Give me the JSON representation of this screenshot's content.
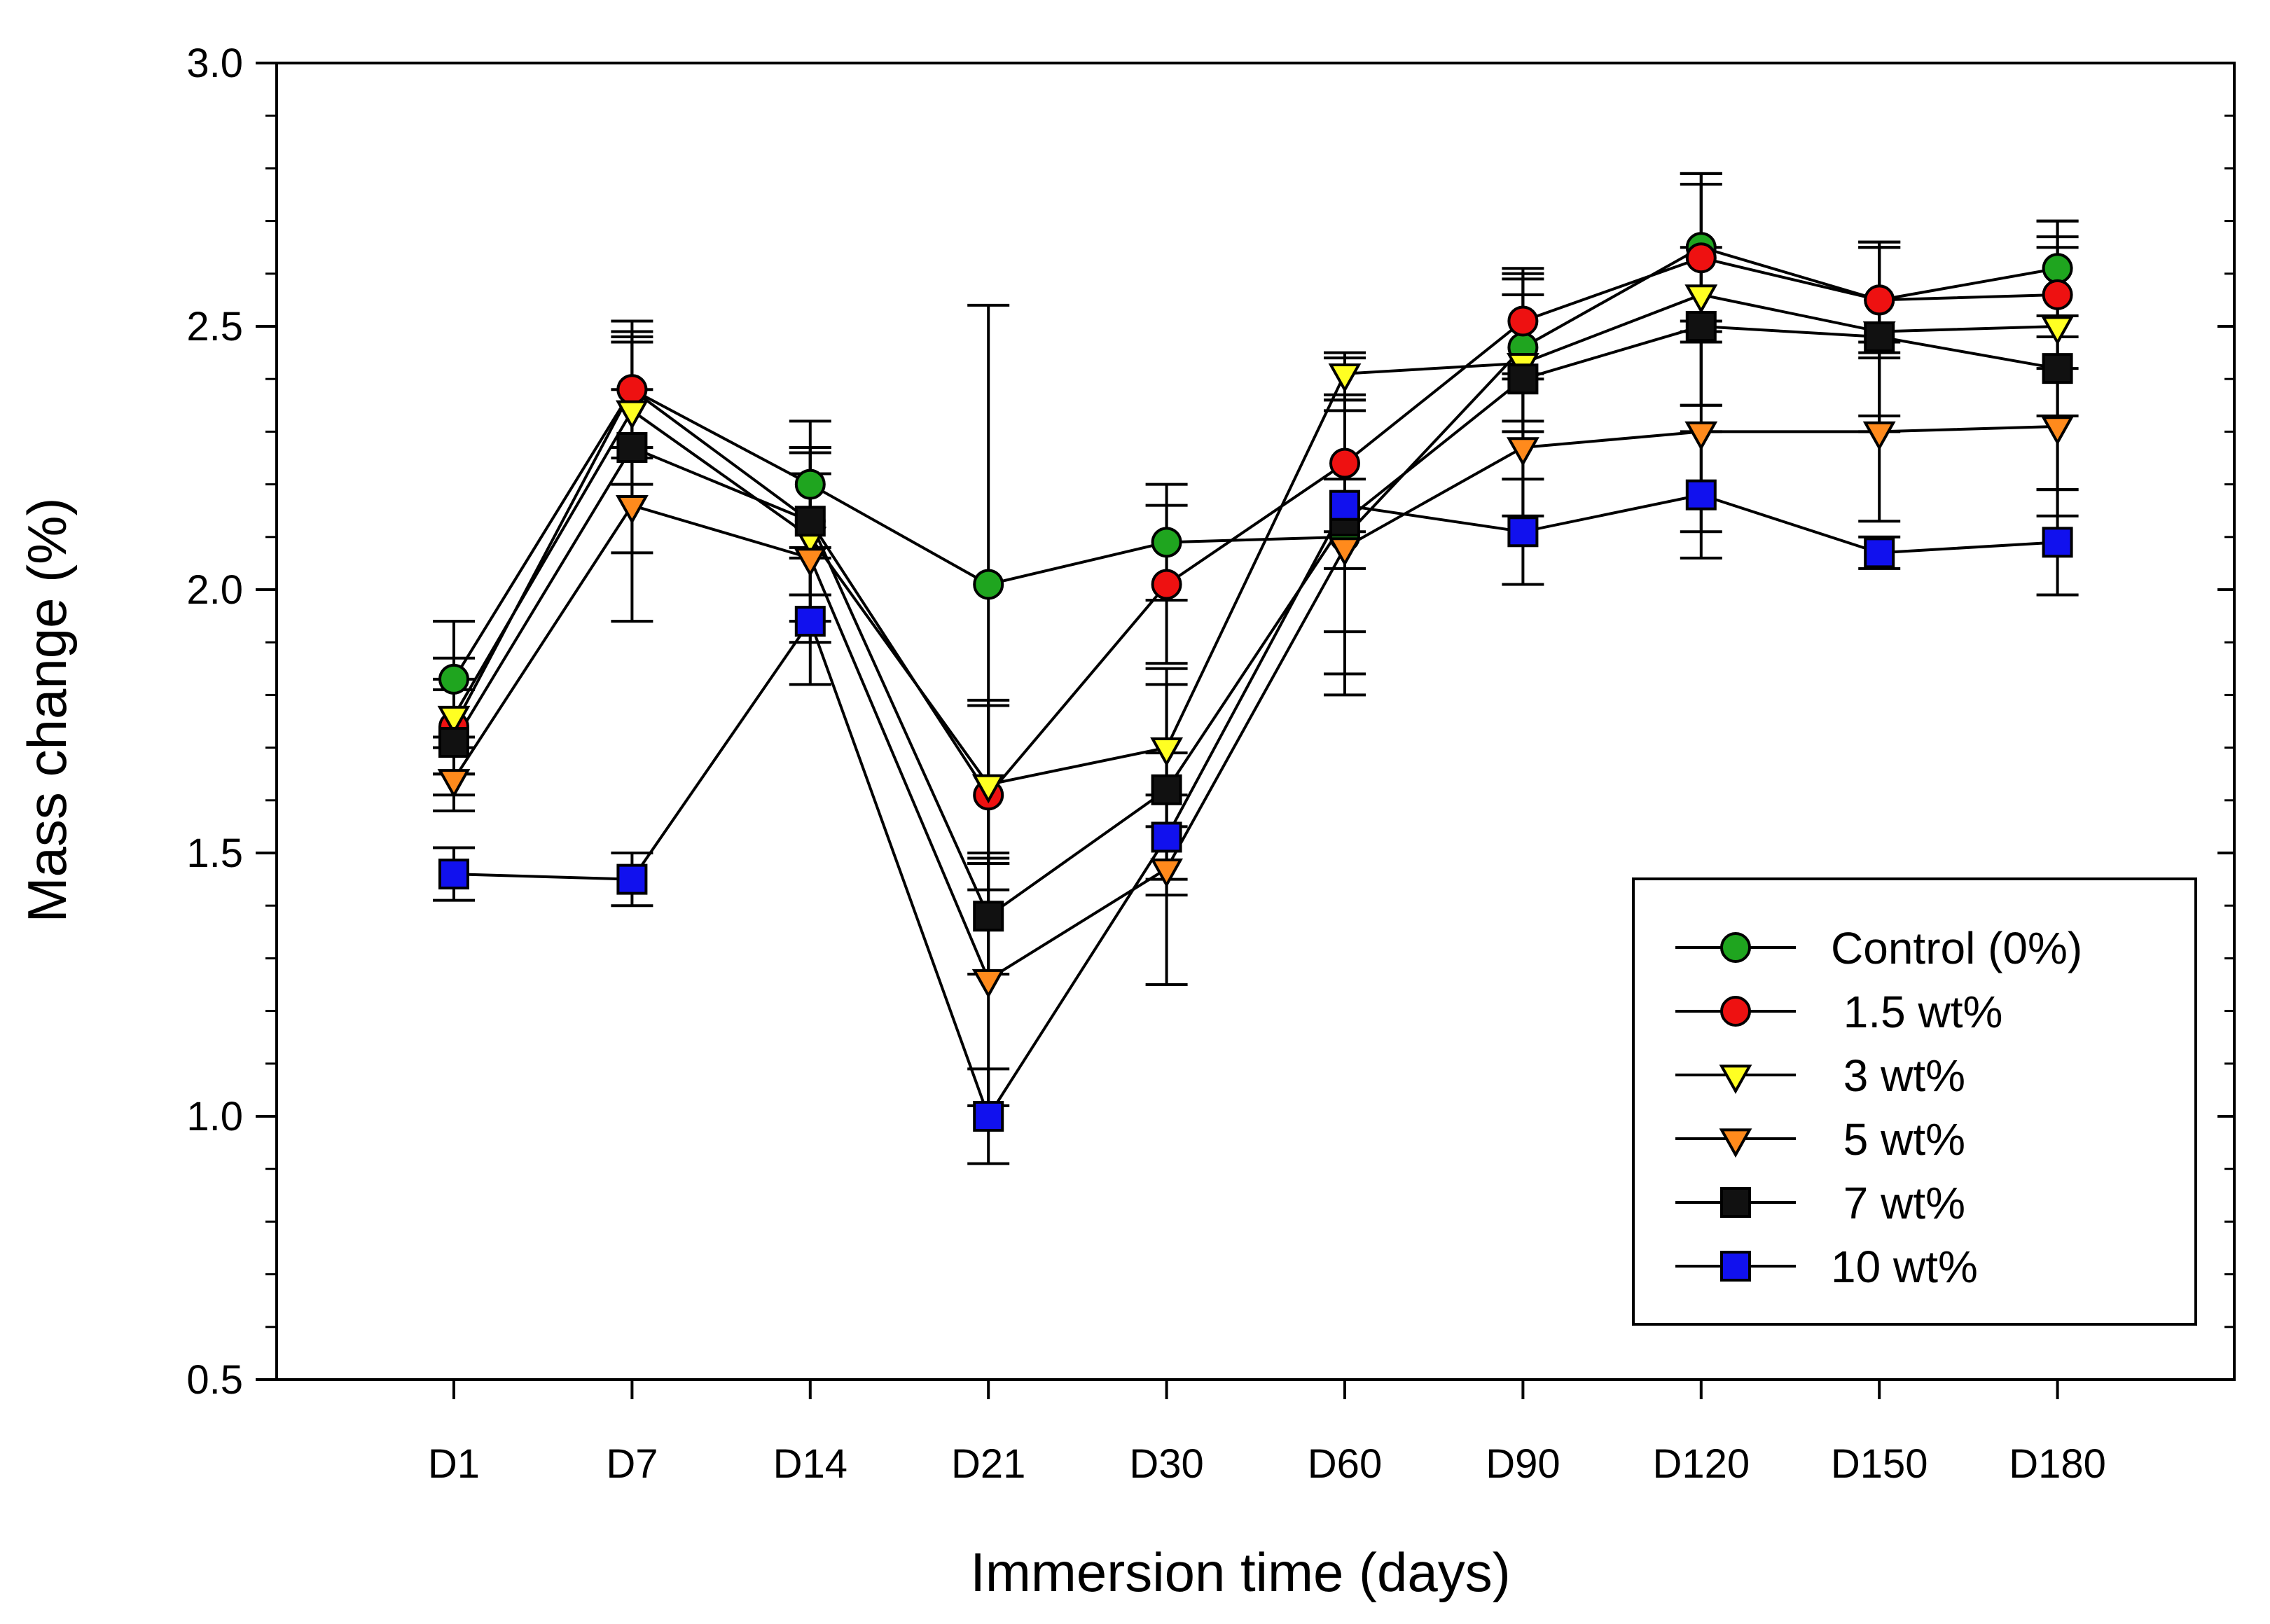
{
  "chart_data": {
    "type": "line",
    "title": "",
    "xlabel": "Immersion time (days)",
    "ylabel": "Mass change (%)",
    "categories": [
      "D1",
      "D7",
      "D14",
      "D21",
      "D30",
      "D60",
      "D90",
      "D120",
      "D150",
      "D180"
    ],
    "ylim": [
      0.5,
      3.0
    ],
    "yticks": [
      "0.5",
      "1.0",
      "1.5",
      "2.0",
      "2.5",
      "3.0"
    ],
    "grid": false,
    "legend_position": "bottom-right",
    "series": [
      {
        "name": "Control (0%)",
        "marker": "circle",
        "color": "#1fa51f",
        "values": [
          1.83,
          2.38,
          2.2,
          2.01,
          2.09,
          2.1,
          2.46,
          2.65,
          2.55,
          2.61
        ],
        "errors": [
          0.11,
          0.11,
          0.12,
          0.53,
          0.11,
          0.26,
          0.14,
          0.14,
          0.1,
          0.09
        ]
      },
      {
        "name": " 1.5 wt%",
        "marker": "circle",
        "color": "#ee1111",
        "values": [
          1.74,
          2.38,
          2.13,
          1.61,
          2.01,
          2.24,
          2.51,
          2.63,
          2.55,
          2.56
        ],
        "errors": [
          0.09,
          0.13,
          0.14,
          0.18,
          0.15,
          0.2,
          0.1,
          0.16,
          0.11,
          0.14
        ]
      },
      {
        "name": " 3 wt%",
        "marker": "triangle-down",
        "color": "#ffff22",
        "values": [
          1.76,
          2.34,
          2.1,
          1.63,
          1.7,
          2.41,
          2.43,
          2.56,
          2.49,
          2.5
        ],
        "errors": [
          0.11,
          0.14,
          0.16,
          0.15,
          0.15,
          0.04,
          0.13,
          0.21,
          0.16,
          0.17
        ]
      },
      {
        "name": " 5 wt%",
        "marker": "triangle-down",
        "color": "#ff8a1c",
        "values": [
          1.64,
          2.16,
          2.06,
          1.26,
          1.47,
          2.08,
          2.27,
          2.3,
          2.3,
          2.31
        ],
        "errors": [
          0.06,
          0.22,
          0.16,
          0.24,
          0.22,
          0.28,
          0.13,
          0.19,
          0.17,
          0.17
        ]
      },
      {
        "name": " 7 wt%",
        "marker": "square",
        "color": "#111111",
        "values": [
          1.71,
          2.27,
          2.13,
          1.38,
          1.62,
          2.13,
          2.4,
          2.5,
          2.48,
          2.42
        ],
        "errors": [
          0.1,
          0.2,
          0.14,
          0.11,
          0.2,
          0.21,
          0.19,
          0.15,
          0.18,
          0.23
        ]
      },
      {
        "name": "10 wt%",
        "marker": "square",
        "color": "#1111ee",
        "values": [
          1.46,
          1.45,
          1.94,
          1.0,
          1.53,
          2.16,
          2.11,
          2.18,
          2.07,
          2.09
        ],
        "errors": [
          0.05,
          0.05,
          0.12,
          0.09,
          0.08,
          0.05,
          0.1,
          0.12,
          0.03,
          0.1
        ]
      }
    ]
  }
}
